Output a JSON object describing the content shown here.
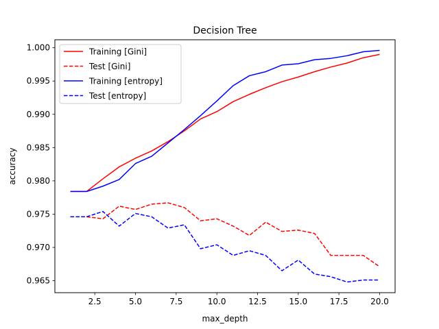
{
  "chart_data": {
    "type": "line",
    "title": "Decision Tree",
    "xlabel": "max_depth",
    "ylabel": "accuracy",
    "xlim": [
      0.05,
      20.95
    ],
    "ylim": [
      0.9632,
      1.0012
    ],
    "x_ticks": [
      2.5,
      5.0,
      7.5,
      10.0,
      12.5,
      15.0,
      17.5,
      20.0
    ],
    "x_tick_labels": [
      "2.5",
      "5.0",
      "7.5",
      "10.0",
      "12.5",
      "15.0",
      "17.5",
      "20.0"
    ],
    "y_ticks": [
      0.965,
      0.97,
      0.975,
      0.98,
      0.985,
      0.99,
      0.995,
      1.0
    ],
    "y_tick_labels": [
      "0.965",
      "0.970",
      "0.975",
      "0.980",
      "0.985",
      "0.990",
      "0.995",
      "1.000"
    ],
    "grid": false,
    "legend_position": "top-left",
    "x": [
      1,
      2,
      3,
      4,
      5,
      6,
      7,
      8,
      9,
      10,
      11,
      12,
      13,
      14,
      15,
      16,
      17,
      18,
      19,
      20
    ],
    "series": [
      {
        "name": "Training [Gini]",
        "color": "#ff0000",
        "linestyle": "solid",
        "values": [
          0.9784,
          0.9784,
          0.9803,
          0.9821,
          0.9834,
          0.9845,
          0.9859,
          0.9875,
          0.9893,
          0.9904,
          0.9919,
          0.993,
          0.994,
          0.9949,
          0.9956,
          0.9964,
          0.9971,
          0.9977,
          0.9985,
          0.999
        ]
      },
      {
        "name": "Test [Gini]",
        "color": "#ff0000",
        "linestyle": "dashed",
        "values": [
          0.9746,
          0.9746,
          0.9743,
          0.9762,
          0.9757,
          0.9765,
          0.9767,
          0.976,
          0.974,
          0.9743,
          0.9732,
          0.9718,
          0.9738,
          0.9724,
          0.9726,
          0.9721,
          0.9688,
          0.9688,
          0.9688,
          0.9671
        ]
      },
      {
        "name": "Training [entropy]",
        "color": "#0000ff",
        "linestyle": "solid",
        "values": [
          0.9784,
          0.9784,
          0.9792,
          0.9802,
          0.9826,
          0.9837,
          0.9857,
          0.9877,
          0.9898,
          0.992,
          0.9943,
          0.9958,
          0.9964,
          0.9974,
          0.9976,
          0.9982,
          0.9984,
          0.9988,
          0.9994,
          0.9996
        ]
      },
      {
        "name": "Test [entropy]",
        "color": "#0000ff",
        "linestyle": "dashed",
        "values": [
          0.9746,
          0.9746,
          0.9754,
          0.9732,
          0.9751,
          0.9746,
          0.9729,
          0.9734,
          0.9698,
          0.9704,
          0.9688,
          0.9695,
          0.9688,
          0.9665,
          0.9681,
          0.966,
          0.9656,
          0.9648,
          0.9651,
          0.9651
        ]
      }
    ]
  }
}
